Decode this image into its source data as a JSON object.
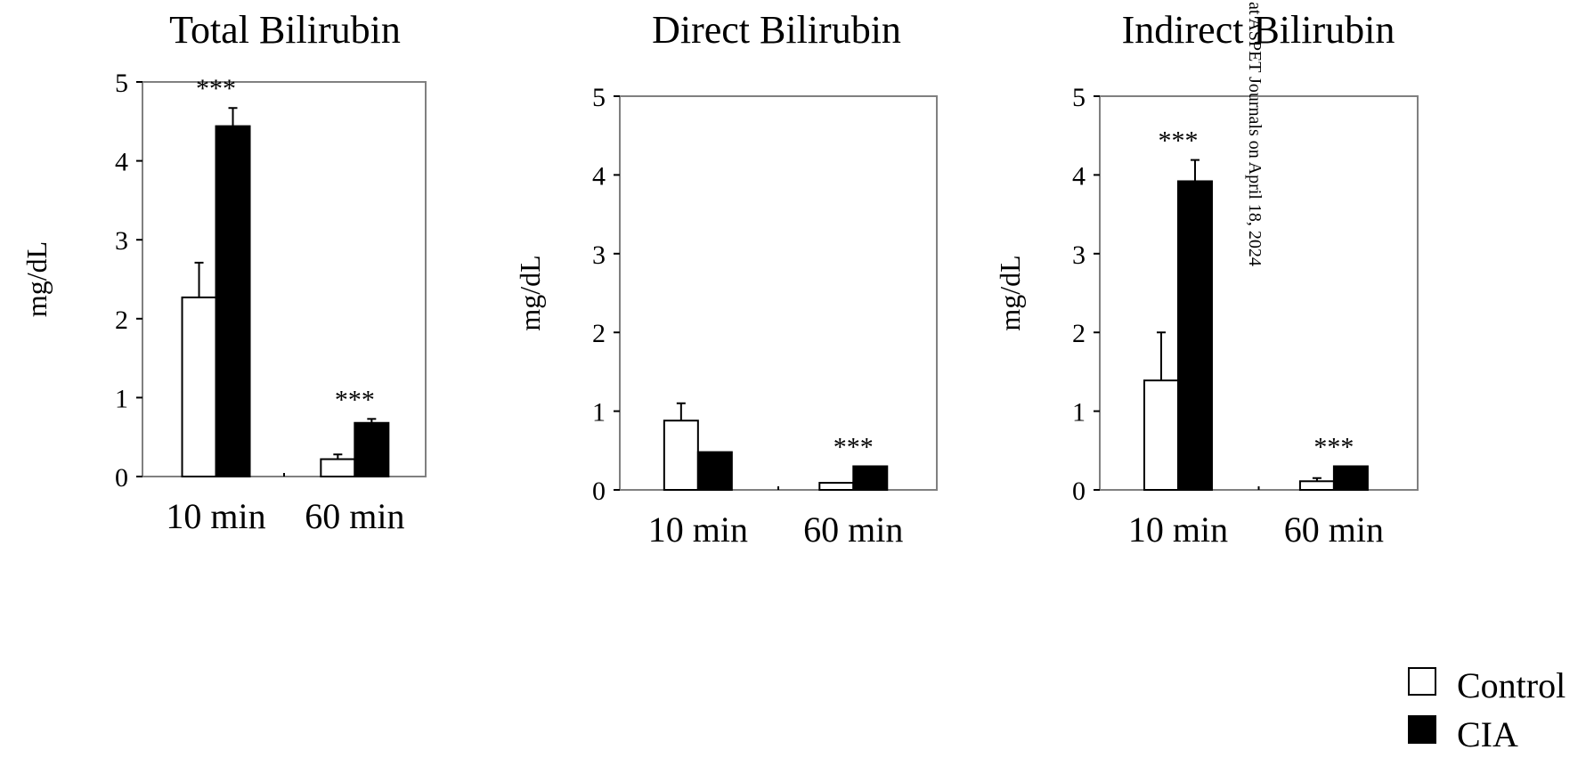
{
  "legend": {
    "control_label": "Control",
    "cia_label": "CIA"
  },
  "watermark": "at ASPET Journals on April 18, 2024",
  "colors": {
    "control_fill": "#ffffff",
    "cia_fill": "#000000",
    "frame": "#808080"
  },
  "chart_data": [
    {
      "type": "bar",
      "title": "Total Bilirubin",
      "ylabel": "mg/dL",
      "ylim": [
        0,
        5
      ],
      "yticks": [
        "0",
        "1",
        "2",
        "3",
        "4",
        "5"
      ],
      "categories": [
        "10 min",
        "60 min"
      ],
      "series": [
        {
          "name": "Control",
          "values": [
            2.27,
            0.22
          ],
          "errors": [
            0.44,
            0.06
          ]
        },
        {
          "name": "CIA",
          "values": [
            4.44,
            0.68
          ],
          "errors": [
            0.23,
            0.05
          ]
        }
      ],
      "annotations": [
        "***",
        "***"
      ]
    },
    {
      "type": "bar",
      "title": "Direct Bilirubin",
      "ylabel": "mg/dL",
      "ylim": [
        0,
        5
      ],
      "yticks": [
        "0",
        "1",
        "2",
        "3",
        "4",
        "5"
      ],
      "categories": [
        "10 min",
        "60 min"
      ],
      "series": [
        {
          "name": "Control",
          "values": [
            0.88,
            0.09
          ],
          "errors": [
            0.22,
            0.0
          ]
        },
        {
          "name": "CIA",
          "values": [
            0.48,
            0.3
          ],
          "errors": [
            0.0,
            0.0
          ]
        }
      ],
      "annotations": [
        "",
        "***"
      ]
    },
    {
      "type": "bar",
      "title": "Indirect Bilirubin",
      "ylabel": "mg/dL",
      "ylim": [
        0,
        5
      ],
      "yticks": [
        "0",
        "1",
        "2",
        "3",
        "4",
        "5"
      ],
      "categories": [
        "10 min",
        "60 min"
      ],
      "series": [
        {
          "name": "Control",
          "values": [
            1.39,
            0.11
          ],
          "errors": [
            0.61,
            0.04
          ]
        },
        {
          "name": "CIA",
          "values": [
            3.92,
            0.3
          ],
          "errors": [
            0.27,
            0.0
          ]
        }
      ],
      "annotations": [
        "***",
        "***"
      ]
    }
  ]
}
